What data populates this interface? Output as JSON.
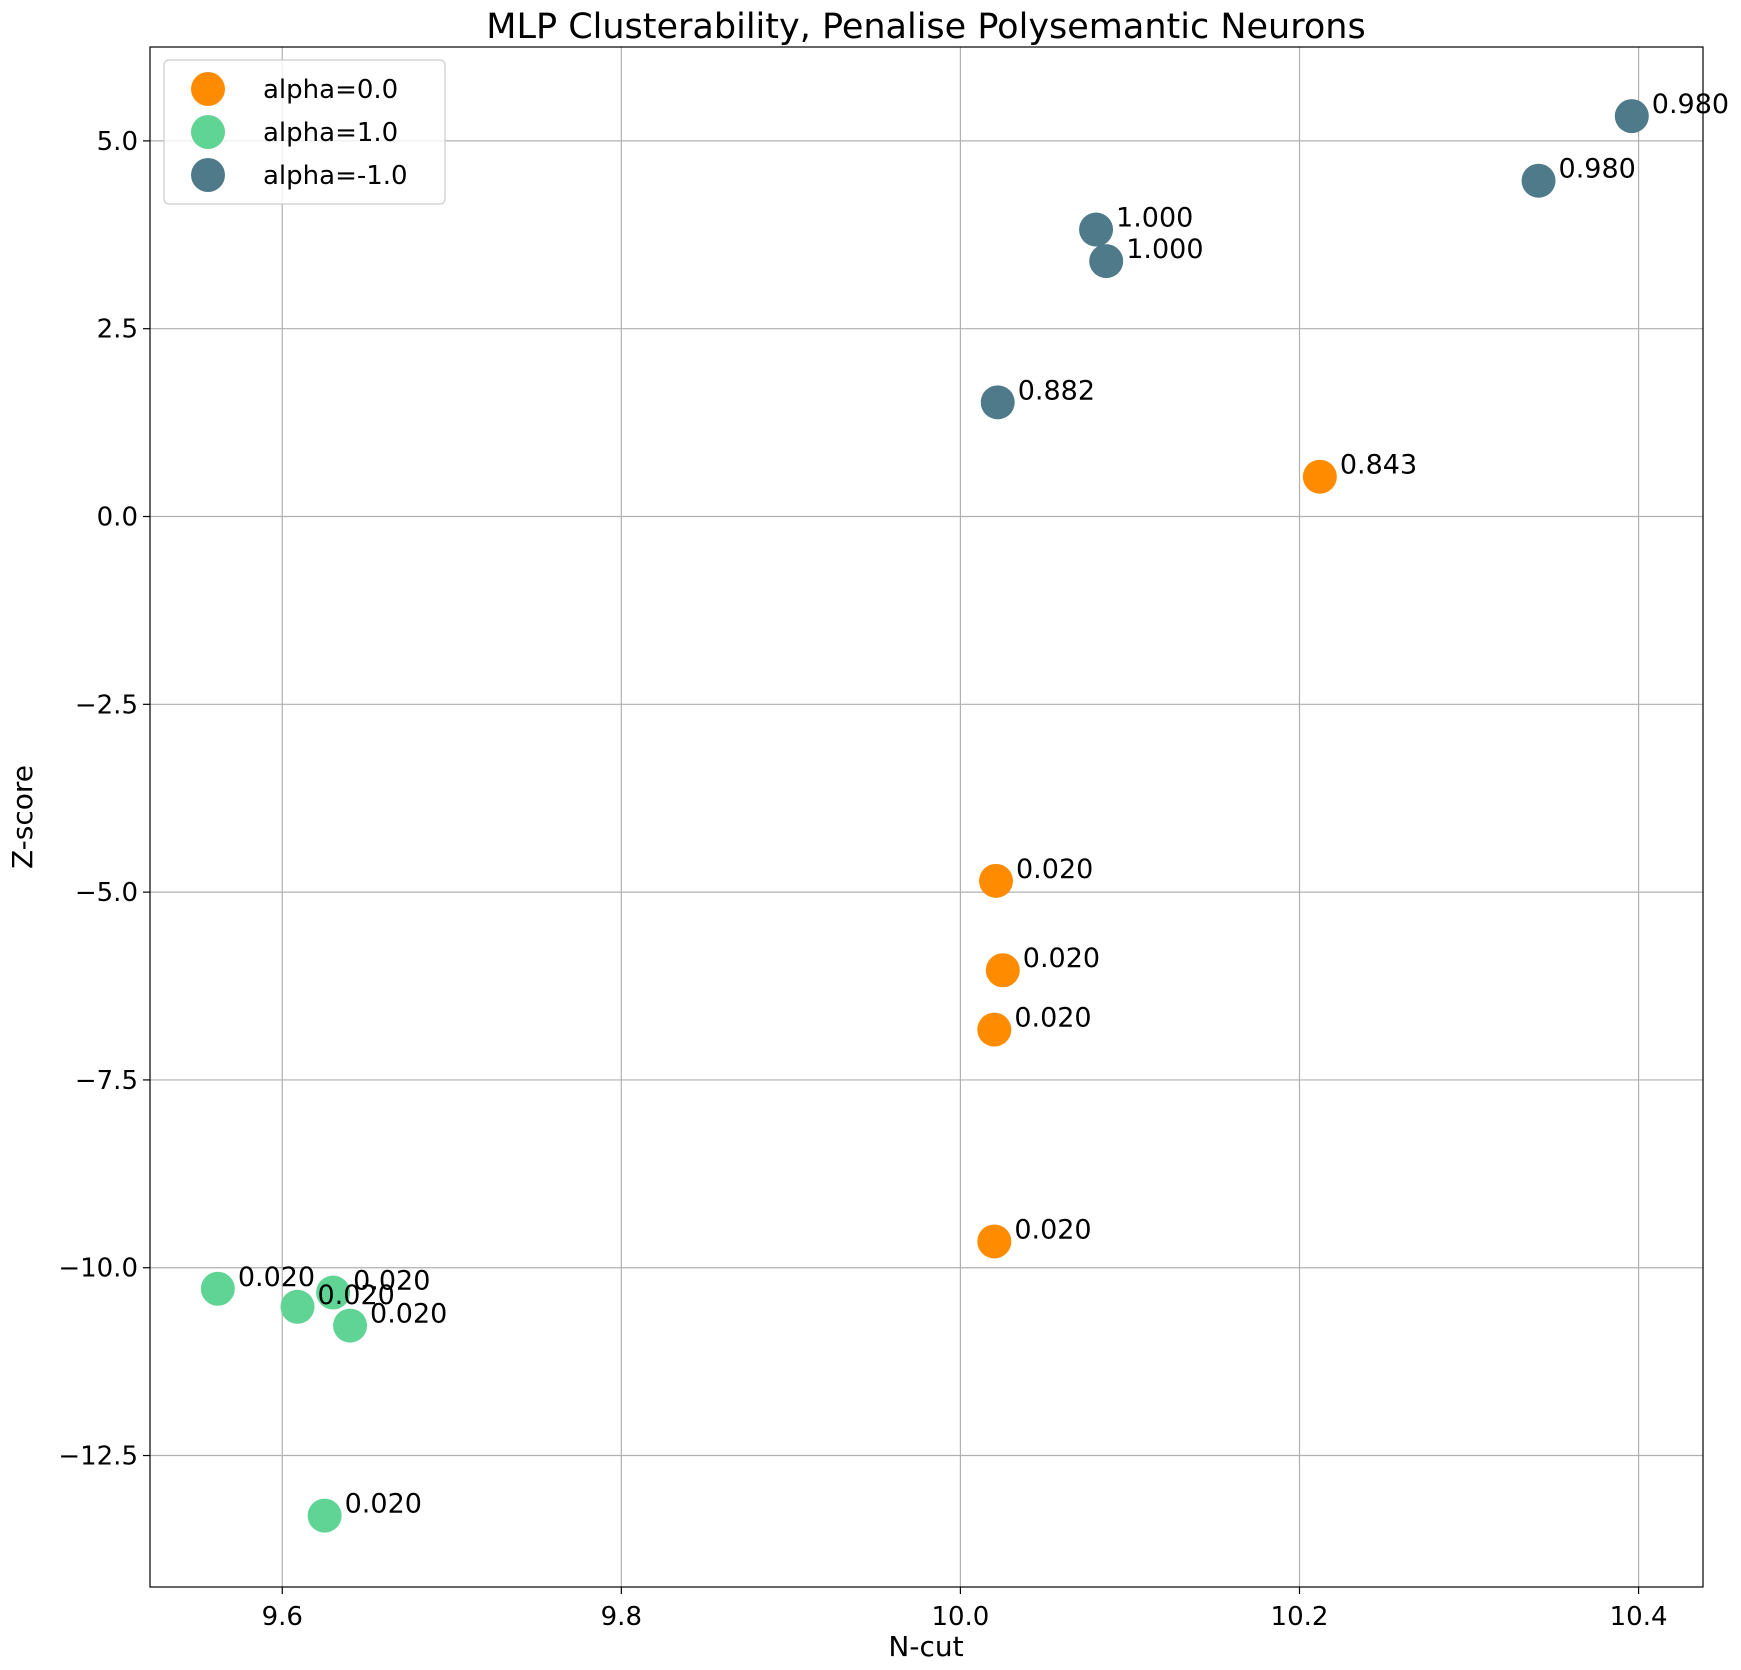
{
  "chart_data": {
    "type": "scatter",
    "title": "MLP Clusterability, Penalise Polysemantic Neurons",
    "xlabel": "N-cut",
    "ylabel": "Z-score",
    "xlim": [
      9.522,
      10.438
    ],
    "ylim": [
      -14.25,
      6.25
    ],
    "xticks": [
      9.6,
      9.8,
      10.0,
      10.2,
      10.4
    ],
    "xtick_labels": [
      "9.6",
      "9.8",
      "10.0",
      "10.2",
      "10.4"
    ],
    "yticks": [
      -12.5,
      -10.0,
      -7.5,
      -5.0,
      -2.5,
      0.0,
      2.5,
      5.0
    ],
    "ytick_labels": [
      "−12.5",
      "−10.0",
      "−7.5",
      "−5.0",
      "−2.5",
      "0.0",
      "2.5",
      "5.0"
    ],
    "grid": true,
    "legend_position": "top-left",
    "series": [
      {
        "name": "alpha=0.0",
        "color": "#ff8c00",
        "points": [
          {
            "x": 10.021,
            "y": -4.85,
            "label": "0.020"
          },
          {
            "x": 10.025,
            "y": -6.04,
            "label": "0.020"
          },
          {
            "x": 10.02,
            "y": -6.83,
            "label": "0.020"
          },
          {
            "x": 10.02,
            "y": -9.65,
            "label": "0.020"
          },
          {
            "x": 10.212,
            "y": 0.53,
            "label": "0.843"
          }
        ]
      },
      {
        "name": "alpha=1.0",
        "color": "#5fd494",
        "points": [
          {
            "x": 9.562,
            "y": -10.28,
            "label": "0.020"
          },
          {
            "x": 9.609,
            "y": -10.52,
            "label": "0.020"
          },
          {
            "x": 9.63,
            "y": -10.33,
            "label": "0.020"
          },
          {
            "x": 9.64,
            "y": -10.77,
            "label": "0.020"
          },
          {
            "x": 9.625,
            "y": -13.3,
            "label": "0.020"
          }
        ]
      },
      {
        "name": "alpha=-1.0",
        "color": "#4f7a8a",
        "points": [
          {
            "x": 10.022,
            "y": 1.52,
            "label": "0.882"
          },
          {
            "x": 10.08,
            "y": 3.82,
            "label": "1.000"
          },
          {
            "x": 10.086,
            "y": 3.4,
            "label": "1.000"
          },
          {
            "x": 10.341,
            "y": 4.47,
            "label": "0.980"
          },
          {
            "x": 10.396,
            "y": 5.33,
            "label": "0.980"
          }
        ]
      }
    ]
  }
}
